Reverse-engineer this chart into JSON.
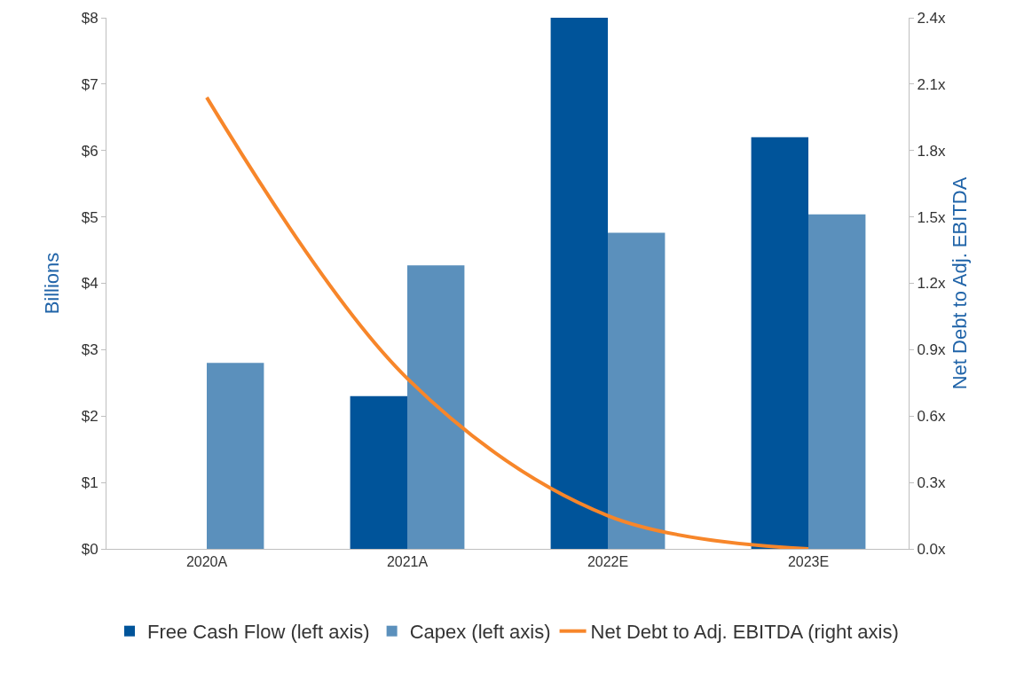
{
  "chart_data": {
    "type": "bar",
    "categories": [
      "2020A",
      "2021A",
      "2022E",
      "2023E"
    ],
    "ylabel": "Billions",
    "y2label": "Net Debt to Adj. EBITDA",
    "series": [
      {
        "name": "Free Cash Flow (left axis)",
        "color": "#00549a",
        "values": [
          0,
          2.3,
          8.0,
          6.2
        ]
      },
      {
        "name": "Capex (left axis)",
        "color": "#5b90bc",
        "values": [
          2.8,
          4.27,
          4.76,
          5.04
        ]
      },
      {
        "name": "Net Debt to Adj. EBITDA (right axis)",
        "type": "line",
        "axis": "y2",
        "color": "#f7862a",
        "values": [
          2.04,
          0.77,
          0.15,
          0.0
        ]
      }
    ],
    "ylim": [
      0,
      8
    ],
    "yticks": [
      {
        "value": 0,
        "label": "$0"
      },
      {
        "value": 1,
        "label": "$1"
      },
      {
        "value": 2,
        "label": "$2"
      },
      {
        "value": 3,
        "label": "$3"
      },
      {
        "value": 4,
        "label": "$4"
      },
      {
        "value": 5,
        "label": "$5"
      },
      {
        "value": 6,
        "label": "$6"
      },
      {
        "value": 7,
        "label": "$7"
      },
      {
        "value": 8,
        "label": "$8"
      }
    ],
    "y2lim": [
      0,
      2.4
    ],
    "y2ticks": [
      {
        "value": 0,
        "label": "0.0x"
      },
      {
        "value": 0.3,
        "label": "0.3x"
      },
      {
        "value": 0.6,
        "label": "0.6x"
      },
      {
        "value": 0.9,
        "label": "0.9x"
      },
      {
        "value": 1.2,
        "label": "1.2x"
      },
      {
        "value": 1.5,
        "label": "1.5x"
      },
      {
        "value": 1.8,
        "label": "1.8x"
      },
      {
        "value": 2.1,
        "label": "2.1x"
      },
      {
        "value": 2.4,
        "label": "2.4x"
      }
    ],
    "grid": false,
    "legend": "bottom",
    "marker": "none",
    "line_style": "solid"
  }
}
